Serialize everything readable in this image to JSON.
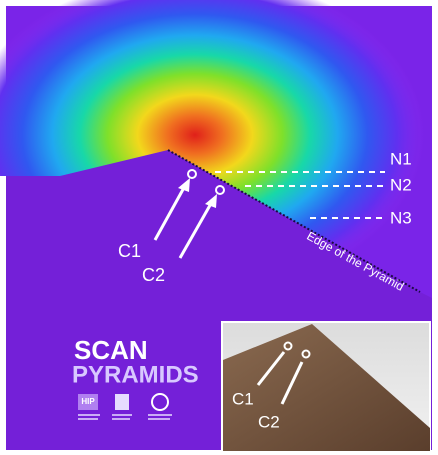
{
  "figure": {
    "levels": [
      "N1",
      "N2",
      "N3"
    ],
    "cavities": [
      "C1",
      "C2"
    ],
    "edge_label": "Edge of the Pyramid",
    "logo": {
      "line1": "SCAN",
      "line2": "PYRAMIDS",
      "badge": "HIP"
    },
    "inset": {
      "labels": [
        "C1",
        "C2"
      ]
    }
  }
}
